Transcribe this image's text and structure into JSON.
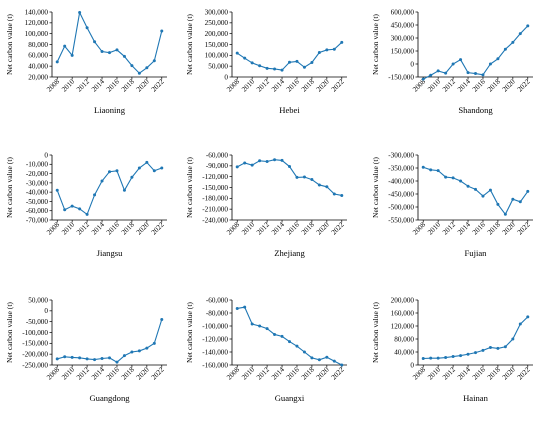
{
  "style": {
    "series_color": "#1f77b4",
    "axis_color": "#000000"
  },
  "chart_data": [
    {
      "type": "line",
      "title": "Liaoning",
      "ylabel": "Net carbon value (t)",
      "ylim": [
        20000,
        140000
      ],
      "yticks": [
        20000,
        40000,
        60000,
        80000,
        100000,
        120000,
        140000
      ],
      "ytick_labels": [
        "20,000",
        "40,000",
        "60,000",
        "80,000",
        "100,000",
        "120,000",
        "140,000"
      ],
      "xlim": [
        2007.3,
        2022.7
      ],
      "xticks": [
        2008,
        2010,
        2012,
        2014,
        2016,
        2018,
        2020,
        2022
      ],
      "x": [
        2008,
        2009,
        2010,
        2011,
        2012,
        2013,
        2014,
        2015,
        2016,
        2017,
        2018,
        2019,
        2020,
        2021,
        2022
      ],
      "values": [
        48000,
        77000,
        60000,
        139000,
        111000,
        85000,
        67000,
        65000,
        70000,
        58000,
        41000,
        27000,
        37000,
        50000,
        105000
      ]
    },
    {
      "type": "line",
      "title": "Hebei",
      "ylabel": "Net carbon value (t)",
      "ylim": [
        0,
        300000
      ],
      "yticks": [
        0,
        50000,
        100000,
        150000,
        200000,
        250000,
        300000
      ],
      "ytick_labels": [
        "0",
        "50,000",
        "100,000",
        "150,000",
        "200,000",
        "250,000",
        "300,000"
      ],
      "xlim": [
        2007.3,
        2022.7
      ],
      "xticks": [
        2008,
        2010,
        2012,
        2014,
        2016,
        2018,
        2020,
        2022
      ],
      "x": [
        2008,
        2009,
        2010,
        2011,
        2012,
        2013,
        2014,
        2015,
        2016,
        2017,
        2018,
        2019,
        2020,
        2021,
        2022
      ],
      "values": [
        110000,
        87000,
        65000,
        52000,
        40000,
        37000,
        32000,
        68000,
        72000,
        45000,
        67000,
        113000,
        125000,
        128000,
        160000
      ]
    },
    {
      "type": "line",
      "title": "Shandong",
      "ylabel": "Net carbon value (t)",
      "ylim": [
        -150000,
        600000
      ],
      "yticks": [
        -150000,
        0,
        150000,
        300000,
        450000,
        600000
      ],
      "ytick_labels": [
        "-150,000",
        "0",
        "150,000",
        "300,000",
        "450,000",
        "600,000"
      ],
      "xlim": [
        2007.3,
        2022.7
      ],
      "xticks": [
        2008,
        2010,
        2012,
        2014,
        2016,
        2018,
        2020,
        2022
      ],
      "x": [
        2008,
        2009,
        2010,
        2011,
        2012,
        2013,
        2014,
        2015,
        2016,
        2017,
        2018,
        2019,
        2020,
        2021,
        2022
      ],
      "values": [
        -175000,
        -130000,
        -80000,
        -105000,
        0,
        50000,
        -100000,
        -110000,
        -125000,
        0,
        60000,
        170000,
        250000,
        350000,
        440000
      ]
    },
    {
      "type": "line",
      "title": "Jiangsu",
      "ylabel": "Net carbon value (t)",
      "ylim": [
        -70000,
        0
      ],
      "yticks": [
        -70000,
        -60000,
        -50000,
        -40000,
        -30000,
        -20000,
        -10000,
        0
      ],
      "ytick_labels": [
        "-70,000",
        "-60,000",
        "-50,000",
        "-40,000",
        "-30,000",
        "-20,000",
        "-10,000",
        "0"
      ],
      "xlim": [
        2007.3,
        2022.7
      ],
      "xticks": [
        2008,
        2010,
        2012,
        2014,
        2016,
        2018,
        2020,
        2022
      ],
      "x": [
        2008,
        2009,
        2010,
        2011,
        2012,
        2013,
        2014,
        2015,
        2016,
        2017,
        2018,
        2019,
        2020,
        2021,
        2022
      ],
      "values": [
        -38000,
        -59000,
        -55000,
        -58000,
        -64000,
        -43000,
        -28000,
        -18000,
        -17000,
        -38000,
        -24000,
        -14000,
        -8000,
        -17000,
        -14000
      ]
    },
    {
      "type": "line",
      "title": "Zhejiang",
      "ylabel": "Net carbon value (t)",
      "ylim": [
        -240000,
        -60000
      ],
      "yticks": [
        -240000,
        -210000,
        -180000,
        -150000,
        -120000,
        -90000,
        -60000
      ],
      "ytick_labels": [
        "-240,000",
        "-210,000",
        "-180,000",
        "-150,000",
        "-120,000",
        "-90,000",
        "-60,000"
      ],
      "xlim": [
        2007.3,
        2022.7
      ],
      "xticks": [
        2008,
        2010,
        2012,
        2014,
        2016,
        2018,
        2020,
        2022
      ],
      "x": [
        2008,
        2009,
        2010,
        2011,
        2012,
        2013,
        2014,
        2015,
        2016,
        2017,
        2018,
        2019,
        2020,
        2021,
        2022
      ],
      "values": [
        -93000,
        -82000,
        -88000,
        -76000,
        -78000,
        -73000,
        -75000,
        -92000,
        -122000,
        -121000,
        -128000,
        -143000,
        -148000,
        -168000,
        -172000
      ]
    },
    {
      "type": "line",
      "title": "Fujian",
      "ylabel": "Net carbon value (t)",
      "ylim": [
        -550000,
        -300000
      ],
      "yticks": [
        -550000,
        -500000,
        -450000,
        -400000,
        -350000,
        -300000
      ],
      "ytick_labels": [
        "-550,000",
        "-500,000",
        "-450,000",
        "-400,000",
        "-350,000",
        "-300,000"
      ],
      "xlim": [
        2007.3,
        2022.7
      ],
      "xticks": [
        2008,
        2010,
        2012,
        2014,
        2016,
        2018,
        2020,
        2022
      ],
      "x": [
        2008,
        2009,
        2010,
        2011,
        2012,
        2013,
        2014,
        2015,
        2016,
        2017,
        2018,
        2019,
        2020,
        2021,
        2022
      ],
      "values": [
        -347000,
        -357000,
        -360000,
        -385000,
        -388000,
        -400000,
        -420000,
        -432000,
        -458000,
        -435000,
        -490000,
        -528000,
        -470000,
        -480000,
        -440000
      ]
    },
    {
      "type": "line",
      "title": "Guangdong",
      "ylabel": "Net carbon value (t)",
      "ylim": [
        -250000,
        50000
      ],
      "yticks": [
        -250000,
        -200000,
        -150000,
        -100000,
        -50000,
        0,
        50000
      ],
      "ytick_labels": [
        "-250,000",
        "-200,000",
        "-150,000",
        "-100,000",
        "-50,000",
        "0",
        "50,000"
      ],
      "xlim": [
        2007.3,
        2022.7
      ],
      "xticks": [
        2008,
        2010,
        2012,
        2014,
        2016,
        2018,
        2020,
        2022
      ],
      "x": [
        2008,
        2009,
        2010,
        2011,
        2012,
        2013,
        2014,
        2015,
        2016,
        2017,
        2018,
        2019,
        2020,
        2021,
        2022
      ],
      "values": [
        -222000,
        -212000,
        -215000,
        -217000,
        -222000,
        -225000,
        -220000,
        -217000,
        -237000,
        -207000,
        -190000,
        -185000,
        -172000,
        -150000,
        -40000
      ]
    },
    {
      "type": "line",
      "title": "Guangxi",
      "ylabel": "Net carbon value (t)",
      "ylim": [
        -160000,
        -60000
      ],
      "yticks": [
        -160000,
        -140000,
        -120000,
        -100000,
        -80000,
        -60000
      ],
      "ytick_labels": [
        "-160,000",
        "-140,000",
        "-120,000",
        "-100,000",
        "-80,000",
        "-60,000"
      ],
      "xlim": [
        2007.3,
        2022.7
      ],
      "xticks": [
        2008,
        2010,
        2012,
        2014,
        2016,
        2018,
        2020,
        2022
      ],
      "x": [
        2008,
        2009,
        2010,
        2011,
        2012,
        2013,
        2014,
        2015,
        2016,
        2017,
        2018,
        2019,
        2020,
        2021,
        2022
      ],
      "values": [
        -73000,
        -71000,
        -97000,
        -100000,
        -104000,
        -113000,
        -116000,
        -124000,
        -131000,
        -140000,
        -149000,
        -152000,
        -148000,
        -154000,
        -160000
      ]
    },
    {
      "type": "line",
      "title": "Hainan",
      "ylabel": "Net carbon value (t)",
      "ylim": [
        0,
        200000
      ],
      "yticks": [
        0,
        40000,
        80000,
        120000,
        160000,
        200000
      ],
      "ytick_labels": [
        "0",
        "40,000",
        "80,000",
        "120,000",
        "160,000",
        "200,000"
      ],
      "xlim": [
        2007.3,
        2022.7
      ],
      "xticks": [
        2008,
        2010,
        2012,
        2014,
        2016,
        2018,
        2020,
        2022
      ],
      "x": [
        2008,
        2009,
        2010,
        2011,
        2012,
        2013,
        2014,
        2015,
        2016,
        2017,
        2018,
        2019,
        2020,
        2021,
        2022
      ],
      "values": [
        20000,
        21000,
        21000,
        23000,
        26000,
        29000,
        33000,
        38000,
        45000,
        54000,
        51000,
        56000,
        80000,
        126000,
        148000
      ]
    }
  ]
}
